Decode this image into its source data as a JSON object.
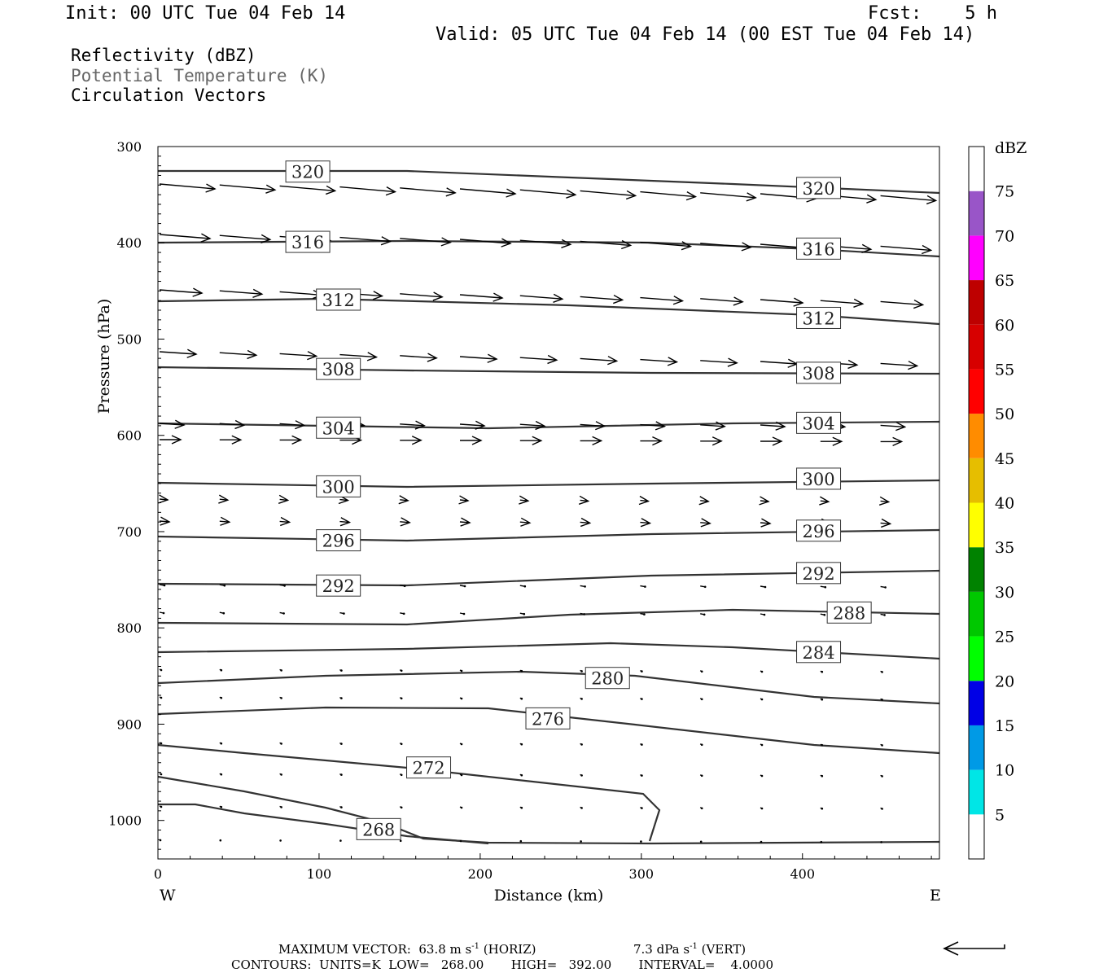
{
  "header": {
    "init": "Init: 00 UTC Tue 04 Feb 14",
    "fcst": "Fcst:    5 h",
    "valid": "Valid: 05 UTC Tue 04 Feb 14 (00 EST Tue 04 Feb 14)"
  },
  "fields": {
    "field1": "Reflectivity (dBZ)",
    "field2": "Potential Temperature (K)",
    "field3": "Circulation Vectors"
  },
  "footer": {
    "max_vector_label": "MAXIMUM VECTOR:",
    "horiz_value": "63.8 m s",
    "horiz_unit": "(HORIZ)",
    "vert_value": "7.3 dPa s",
    "vert_unit": "(VERT)",
    "exponent": "-1",
    "contours": "CONTOURS:  UNITS=K  LOW=   268.00       HIGH=   392.00       INTERVAL=    4.0000"
  },
  "chart_data": {
    "type": "cross-section",
    "xlabel": "Distance (km)",
    "ylabel": "Pressure (hPa)",
    "xlim": [
      0,
      485
    ],
    "ylim": [
      1040,
      300
    ],
    "x_ticks": [
      0,
      100,
      200,
      300,
      400
    ],
    "y_ticks": [
      300,
      400,
      500,
      600,
      700,
      800,
      900,
      1000
    ],
    "x_end_labels": {
      "left": "W",
      "right": "E"
    },
    "colorbar": {
      "title": "dBZ",
      "levels": [
        "5",
        "10",
        "15",
        "20",
        "25",
        "30",
        "35",
        "40",
        "45",
        "50",
        "55",
        "60",
        "65",
        "70",
        "75"
      ],
      "colors": [
        "#ffffff",
        "#00e6e6",
        "#009ae6",
        "#0000e6",
        "#00ff00",
        "#00c800",
        "#008200",
        "#ffff00",
        "#e6be00",
        "#ff8c00",
        "#ff0000",
        "#d70000",
        "#be0000",
        "#ff00ff",
        "#9955c8",
        "#ffffff"
      ]
    },
    "contour_labels": [
      {
        "value": "320",
        "x": 93,
        "p": 326
      },
      {
        "value": "320",
        "x": 410,
        "p": 343
      },
      {
        "value": "316",
        "x": 93,
        "p": 399
      },
      {
        "value": "316",
        "x": 410,
        "p": 406
      },
      {
        "value": "312",
        "x": 112,
        "p": 459
      },
      {
        "value": "312",
        "x": 410,
        "p": 478
      },
      {
        "value": "308",
        "x": 112,
        "p": 531
      },
      {
        "value": "308",
        "x": 410,
        "p": 535
      },
      {
        "value": "304",
        "x": 112,
        "p": 592
      },
      {
        "value": "304",
        "x": 410,
        "p": 587
      },
      {
        "value": "300",
        "x": 112,
        "p": 653
      },
      {
        "value": "300",
        "x": 410,
        "p": 645
      },
      {
        "value": "296",
        "x": 112,
        "p": 709
      },
      {
        "value": "296",
        "x": 410,
        "p": 699
      },
      {
        "value": "292",
        "x": 112,
        "p": 756
      },
      {
        "value": "292",
        "x": 410,
        "p": 743
      },
      {
        "value": "288",
        "x": 429,
        "p": 784
      },
      {
        "value": "284",
        "x": 410,
        "p": 825
      },
      {
        "value": "280",
        "x": 279,
        "p": 852
      },
      {
        "value": "276",
        "x": 242,
        "p": 894
      },
      {
        "value": "272",
        "x": 168,
        "p": 945
      },
      {
        "value": "268",
        "x": 137,
        "p": 1009
      }
    ],
    "vector_arrow_dir": "left"
  }
}
